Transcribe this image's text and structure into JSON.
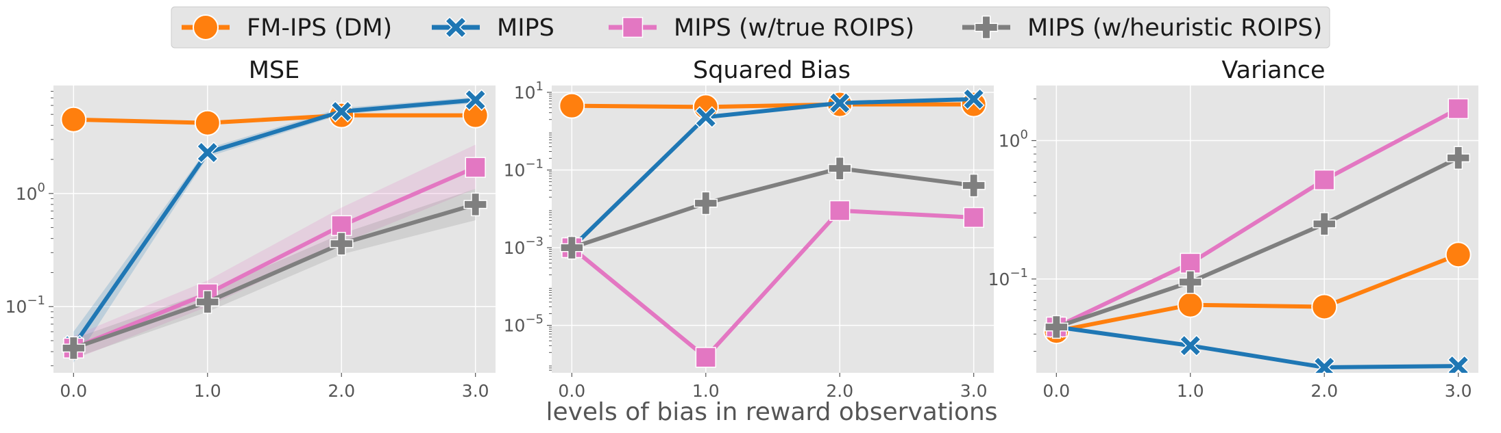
{
  "legend": {
    "placement": "top-center",
    "entries": [
      {
        "label": "FM-IPS (DM)",
        "marker": "circle"
      },
      {
        "label": "MIPS",
        "marker": "x"
      },
      {
        "label": "MIPS (w/true ROIPS)",
        "marker": "square"
      },
      {
        "label": "MIPS (w/heuristic ROIPS)",
        "marker": "plus"
      }
    ]
  },
  "shared_xlabel": "levels of bias in reward observations",
  "colors": {
    "FM-IPS (DM)": "#ff7f0e",
    "MIPS": "#1f77b4",
    "MIPS (w/true ROIPS)": "#e377c2",
    "MIPS (w/heuristic ROIPS)": "#7f7f7f",
    "panel_background": "#e5e5e5",
    "grid": "#ffffff"
  },
  "chart_data": [
    {
      "type": "line",
      "title": "MSE",
      "xlabel": "",
      "ylabel": "",
      "x": [
        0.0,
        1.0,
        2.0,
        3.0
      ],
      "x_tick_labels": [
        "0.0",
        "1.0",
        "2.0",
        "3.0"
      ],
      "xlim": [
        -0.15,
        3.15
      ],
      "yscale": "log",
      "ylim": [
        0.026,
        9.0
      ],
      "y_ticks": [
        0.1,
        1
      ],
      "y_tick_labels": [
        {
          "base": "10",
          "exp": "−1"
        },
        {
          "base": "10",
          "exp": "0"
        }
      ],
      "grid": true,
      "series": [
        {
          "name": "FM-IPS (DM)",
          "values": [
            4.5,
            4.2,
            4.9,
            4.9
          ]
        },
        {
          "name": "MIPS",
          "values": [
            0.045,
            2.3,
            5.3,
            6.7
          ],
          "band_low": [
            0.032,
            2.1,
            5.0,
            6.3
          ],
          "band_high": [
            0.06,
            2.5,
            5.7,
            7.1
          ]
        },
        {
          "name": "MIPS (w/true ROIPS)",
          "values": [
            0.043,
            0.13,
            0.52,
            1.7
          ],
          "band_low": [
            0.034,
            0.1,
            0.36,
            1.1
          ],
          "band_high": [
            0.055,
            0.17,
            0.75,
            2.7
          ]
        },
        {
          "name": "MIPS (w/heuristic ROIPS)",
          "values": [
            0.043,
            0.11,
            0.36,
            0.8
          ],
          "band_low": [
            0.035,
            0.09,
            0.29,
            0.58
          ],
          "band_high": [
            0.052,
            0.135,
            0.44,
            1.1
          ]
        }
      ]
    },
    {
      "type": "line",
      "title": "Squared Bias",
      "xlabel": "",
      "ylabel": "",
      "x": [
        0.0,
        1.0,
        2.0,
        3.0
      ],
      "x_tick_labels": [
        "0.0",
        "1.0",
        "2.0",
        "3.0"
      ],
      "xlim": [
        -0.15,
        3.15
      ],
      "yscale": "log",
      "ylim": [
        6e-07,
        15
      ],
      "y_ticks": [
        1e-05,
        0.001,
        0.1,
        10
      ],
      "y_tick_labels": [
        {
          "base": "10",
          "exp": "−5"
        },
        {
          "base": "10",
          "exp": "−3"
        },
        {
          "base": "10",
          "exp": "−1"
        },
        {
          "base": "10",
          "exp": "1"
        }
      ],
      "grid": true,
      "series": [
        {
          "name": "FM-IPS (DM)",
          "values": [
            4.5,
            4.2,
            4.9,
            4.9
          ]
        },
        {
          "name": "MIPS",
          "values": [
            0.001,
            2.3,
            5.3,
            6.7
          ]
        },
        {
          "name": "MIPS (w/true ROIPS)",
          "values": [
            0.001,
            1.5e-06,
            0.009,
            0.006
          ]
        },
        {
          "name": "MIPS (w/heuristic ROIPS)",
          "values": [
            0.001,
            0.014,
            0.11,
            0.04
          ]
        }
      ]
    },
    {
      "type": "line",
      "title": "Variance",
      "xlabel": "",
      "ylabel": "",
      "x": [
        0.0,
        1.0,
        2.0,
        3.0
      ],
      "x_tick_labels": [
        "0.0",
        "1.0",
        "2.0",
        "3.0"
      ],
      "xlim": [
        -0.15,
        3.15
      ],
      "yscale": "log",
      "ylim": [
        0.021,
        2.5
      ],
      "y_ticks": [
        0.1,
        1
      ],
      "y_tick_labels": [
        {
          "base": "10",
          "exp": "−1"
        },
        {
          "base": "10",
          "exp": "0"
        }
      ],
      "grid": true,
      "series": [
        {
          "name": "FM-IPS (DM)",
          "values": [
            0.042,
            0.065,
            0.063,
            0.15
          ]
        },
        {
          "name": "MIPS",
          "values": [
            0.045,
            0.033,
            0.023,
            0.0235
          ]
        },
        {
          "name": "MIPS (w/true ROIPS)",
          "values": [
            0.045,
            0.13,
            0.52,
            1.7
          ]
        },
        {
          "name": "MIPS (w/heuristic ROIPS)",
          "values": [
            0.045,
            0.095,
            0.25,
            0.75
          ]
        }
      ]
    }
  ]
}
